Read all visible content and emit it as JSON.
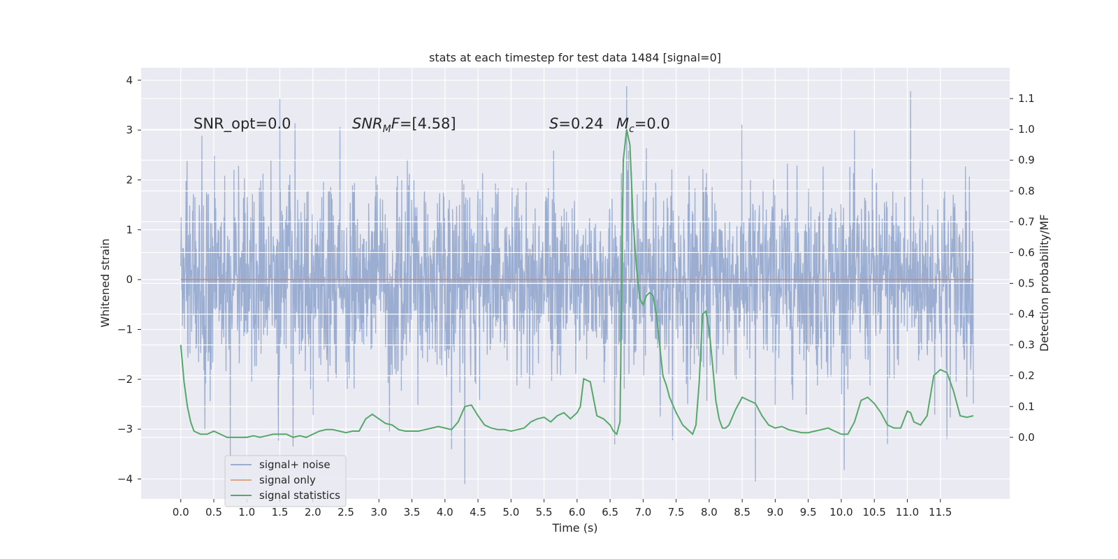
{
  "chart_data": {
    "type": "line",
    "title": "stats at each timestep for test data 1484 [signal=0]",
    "xlabel": "Time (s)",
    "ylabel_left": "Whitened strain",
    "ylabel_right": "Detection probability/MF",
    "xlim": [
      -0.6,
      12.55
    ],
    "ylim_left": [
      -4.4,
      4.25
    ],
    "ylim_right": [
      -0.2,
      1.2
    ],
    "x_ticks": [
      0.0,
      0.5,
      1.0,
      1.5,
      2.0,
      2.5,
      3.0,
      3.5,
      4.0,
      4.5,
      5.0,
      5.5,
      6.0,
      6.5,
      7.0,
      7.5,
      8.0,
      8.5,
      9.0,
      9.5,
      10.0,
      10.5,
      11.0,
      11.5
    ],
    "x_tick_labels": [
      "0.0",
      "0.5",
      "1.0",
      "1.5",
      "2.0",
      "2.5",
      "3.0",
      "3.5",
      "4.0",
      "4.5",
      "5.0",
      "5.5",
      "6.0",
      "6.5",
      "7.0",
      "7.5",
      "8.0",
      "8.5",
      "9.0",
      "9.5",
      "10.0",
      "10.5",
      "11.0",
      "11.5"
    ],
    "y_left_ticks": [
      4,
      3,
      2,
      1,
      0,
      -1,
      -2,
      -3,
      -4
    ],
    "y_left_tick_labels": [
      "4",
      "3",
      "2",
      "1",
      "0",
      "−1",
      "−2",
      "−3",
      "−4"
    ],
    "y_right_ticks": [
      1.1,
      1.0,
      0.9,
      0.8,
      0.7,
      0.6,
      0.5,
      0.4,
      0.3,
      0.2,
      0.1,
      0.0
    ],
    "y_right_tick_labels": [
      "1.1",
      "1.0",
      "0.9",
      "0.8",
      "0.7",
      "0.6",
      "0.5",
      "0.4",
      "0.3",
      "0.2",
      "0.1",
      "0.0"
    ],
    "grid": true,
    "legend_position": "lower-left",
    "colors": {
      "background": "#eaeaf2",
      "grid": "#ffffff",
      "signal_noise": "#4c72b0",
      "signal_only": "#dd8452",
      "statistics": "#55a868"
    },
    "annotations": {
      "snr_opt": "SNR_opt=0.0",
      "snr_mf_base": "SNR",
      "snr_mf_sub": "M",
      "snr_mf_rest": "F=[4.58]",
      "s_sym": "S",
      "s_val": "=0.24",
      "mc_sym": "M",
      "mc_sub": "c",
      "mc_val": "=0.0"
    },
    "series": [
      {
        "name": "signal+ noise",
        "axis": "left",
        "x_range": [
          0.0,
          12.0
        ],
        "approx_std": 0.95,
        "approx_range": [
          -4.1,
          3.9
        ],
        "peaks": [
          {
            "x": 6.75,
            "y": 3.88
          },
          {
            "x": 11.05,
            "y": 3.78
          },
          {
            "x": 1.5,
            "y": 3.63
          },
          {
            "x": 4.3,
            "y": -4.1
          },
          {
            "x": 8.7,
            "y": -4.05
          },
          {
            "x": 0.75,
            "y": -3.55
          },
          {
            "x": 1.7,
            "y": -3.35
          },
          {
            "x": 11.6,
            "y": -3.2
          },
          {
            "x": 10.7,
            "y": -3.3
          },
          {
            "x": 4.1,
            "y": -3.4
          }
        ]
      },
      {
        "name": "signal only",
        "axis": "left",
        "x": [
          0.0,
          12.0
        ],
        "y": [
          0.0,
          0.0
        ]
      },
      {
        "name": "signal statistics",
        "axis": "right",
        "x": [
          0.0,
          0.05,
          0.1,
          0.15,
          0.2,
          0.3,
          0.4,
          0.5,
          0.6,
          0.7,
          0.8,
          0.9,
          1.0,
          1.1,
          1.2,
          1.3,
          1.4,
          1.5,
          1.6,
          1.7,
          1.8,
          1.9,
          2.0,
          2.1,
          2.2,
          2.3,
          2.4,
          2.5,
          2.6,
          2.7,
          2.8,
          2.9,
          3.0,
          3.1,
          3.2,
          3.3,
          3.4,
          3.5,
          3.6,
          3.7,
          3.8,
          3.9,
          4.0,
          4.1,
          4.2,
          4.3,
          4.4,
          4.5,
          4.6,
          4.7,
          4.8,
          4.9,
          5.0,
          5.1,
          5.2,
          5.3,
          5.4,
          5.5,
          5.6,
          5.7,
          5.8,
          5.9,
          6.0,
          6.05,
          6.1,
          6.2,
          6.3,
          6.4,
          6.5,
          6.55,
          6.6,
          6.65,
          6.7,
          6.75,
          6.8,
          6.85,
          6.9,
          6.95,
          7.0,
          7.05,
          7.1,
          7.15,
          7.2,
          7.25,
          7.3,
          7.35,
          7.4,
          7.5,
          7.6,
          7.7,
          7.75,
          7.8,
          7.85,
          7.9,
          7.95,
          8.0,
          8.05,
          8.1,
          8.15,
          8.2,
          8.25,
          8.3,
          8.4,
          8.5,
          8.6,
          8.7,
          8.8,
          8.9,
          9.0,
          9.1,
          9.2,
          9.3,
          9.4,
          9.5,
          9.6,
          9.7,
          9.8,
          9.9,
          10.0,
          10.1,
          10.2,
          10.3,
          10.4,
          10.5,
          10.6,
          10.7,
          10.8,
          10.9,
          11.0,
          11.05,
          11.1,
          11.2,
          11.3,
          11.4,
          11.5,
          11.6,
          11.7,
          11.8,
          11.9,
          12.0
        ],
        "y": [
          0.3,
          0.18,
          0.1,
          0.05,
          0.02,
          0.01,
          0.01,
          0.02,
          0.01,
          0.0,
          0.0,
          0.0,
          0.0,
          0.005,
          0.0,
          0.005,
          0.01,
          0.01,
          0.01,
          0.0,
          0.005,
          0.0,
          0.01,
          0.02,
          0.025,
          0.025,
          0.02,
          0.015,
          0.02,
          0.02,
          0.06,
          0.075,
          0.06,
          0.045,
          0.04,
          0.025,
          0.02,
          0.02,
          0.02,
          0.025,
          0.03,
          0.035,
          0.03,
          0.025,
          0.05,
          0.1,
          0.105,
          0.07,
          0.04,
          0.03,
          0.025,
          0.025,
          0.02,
          0.025,
          0.03,
          0.05,
          0.06,
          0.065,
          0.05,
          0.07,
          0.08,
          0.06,
          0.08,
          0.1,
          0.19,
          0.18,
          0.07,
          0.06,
          0.04,
          0.02,
          0.01,
          0.05,
          0.9,
          1.0,
          0.95,
          0.7,
          0.55,
          0.45,
          0.43,
          0.46,
          0.47,
          0.46,
          0.4,
          0.3,
          0.2,
          0.17,
          0.13,
          0.08,
          0.04,
          0.02,
          0.01,
          0.04,
          0.18,
          0.4,
          0.41,
          0.35,
          0.24,
          0.12,
          0.06,
          0.03,
          0.03,
          0.04,
          0.09,
          0.13,
          0.12,
          0.11,
          0.07,
          0.04,
          0.03,
          0.035,
          0.025,
          0.02,
          0.015,
          0.015,
          0.02,
          0.025,
          0.03,
          0.02,
          0.01,
          0.01,
          0.05,
          0.12,
          0.13,
          0.11,
          0.08,
          0.04,
          0.03,
          0.03,
          0.085,
          0.08,
          0.05,
          0.04,
          0.07,
          0.2,
          0.22,
          0.21,
          0.15,
          0.07,
          0.065,
          0.07
        ]
      }
    ]
  }
}
